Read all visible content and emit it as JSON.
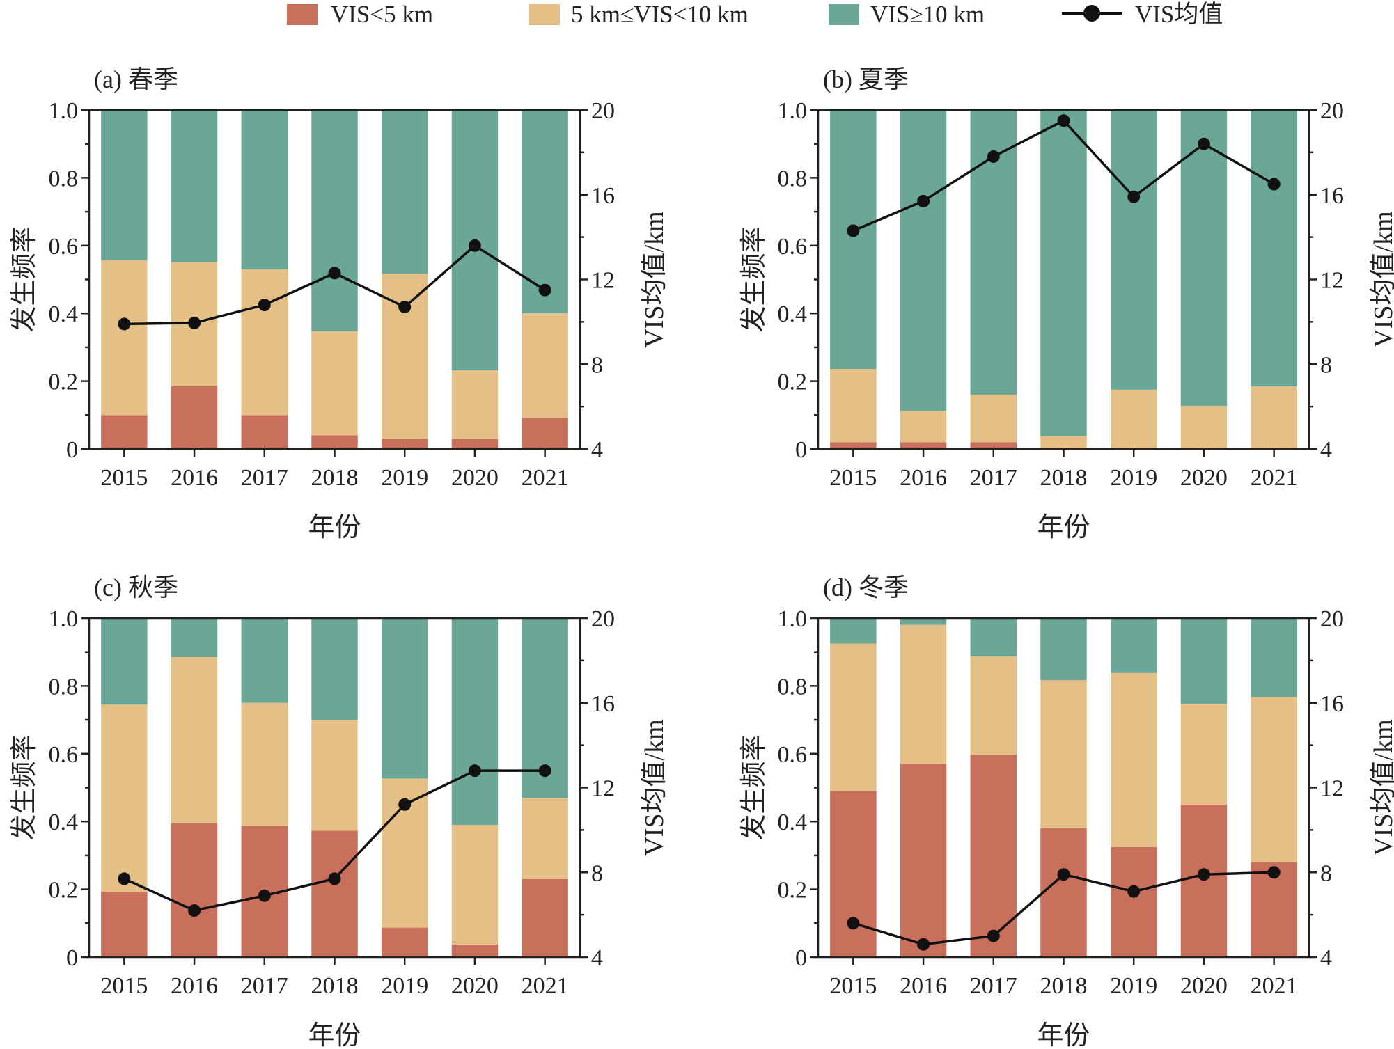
{
  "legend": {
    "items": [
      {
        "label": "VIS<5 km",
        "color": "#c9705c",
        "kind": "bar"
      },
      {
        "label": "5 km≤VIS<10 km",
        "color": "#e4c087",
        "kind": "bar"
      },
      {
        "label": "VIS≥10 km",
        "color": "#6ba797",
        "kind": "bar"
      },
      {
        "label": "VIS均值",
        "color": "#111111",
        "kind": "line"
      }
    ]
  },
  "chart_data": [
    {
      "type": "bar",
      "title": "(a) 春季",
      "categories": [
        "2015",
        "2016",
        "2017",
        "2018",
        "2019",
        "2020",
        "2021"
      ],
      "xlabel": "年份",
      "ylabel": "发生频率",
      "y2label": "VIS均值/km",
      "ylim": [
        0,
        1.0
      ],
      "yticks": [
        "0",
        "0.2",
        "0.4",
        "0.6",
        "0.8",
        "1.0"
      ],
      "y2lim": [
        4,
        20
      ],
      "y2ticks": [
        "4",
        "8",
        "12",
        "16",
        "20"
      ],
      "stacked": true,
      "series": [
        {
          "name": "VIS<5 km",
          "values": [
            0.1,
            0.185,
            0.1,
            0.04,
            0.03,
            0.03,
            0.093
          ]
        },
        {
          "name": "5 km≤VIS<10 km",
          "values": [
            0.457,
            0.367,
            0.43,
            0.307,
            0.487,
            0.202,
            0.307
          ]
        },
        {
          "name": "VIS≥10 km",
          "values": [
            0.443,
            0.448,
            0.47,
            0.653,
            0.483,
            0.768,
            0.6
          ]
        }
      ],
      "line": {
        "name": "VIS均值",
        "values": [
          9.9,
          9.95,
          10.8,
          12.3,
          10.7,
          13.6,
          11.5
        ]
      }
    },
    {
      "type": "bar",
      "title": "(b) 夏季",
      "categories": [
        "2015",
        "2016",
        "2017",
        "2018",
        "2019",
        "2020",
        "2021"
      ],
      "xlabel": "年份",
      "ylabel": "发生频率",
      "y2label": "VIS均值/km",
      "ylim": [
        0,
        1.0
      ],
      "yticks": [
        "0",
        "0.2",
        "0.4",
        "0.6",
        "0.8",
        "1.0"
      ],
      "y2lim": [
        4,
        20
      ],
      "y2ticks": [
        "4",
        "8",
        "12",
        "16",
        "20"
      ],
      "stacked": true,
      "series": [
        {
          "name": "VIS<5 km",
          "values": [
            0.02,
            0.02,
            0.02,
            0.0,
            0.0,
            0.0,
            0.0
          ]
        },
        {
          "name": "5 km≤VIS<10 km",
          "values": [
            0.216,
            0.092,
            0.14,
            0.038,
            0.175,
            0.127,
            0.185
          ]
        },
        {
          "name": "VIS≥10 km",
          "values": [
            0.764,
            0.888,
            0.84,
            0.962,
            0.825,
            0.873,
            0.815
          ]
        }
      ],
      "line": {
        "name": "VIS均值",
        "values": [
          14.3,
          15.7,
          17.8,
          19.5,
          15.9,
          18.4,
          16.5
        ]
      }
    },
    {
      "type": "bar",
      "title": "(c) 秋季",
      "categories": [
        "2015",
        "2016",
        "2017",
        "2018",
        "2019",
        "2020",
        "2021"
      ],
      "xlabel": "年份",
      "ylabel": "发生频率",
      "y2label": "VIS均值/km",
      "ylim": [
        0,
        1.0
      ],
      "yticks": [
        "0",
        "0.2",
        "0.4",
        "0.6",
        "0.8",
        "1.0"
      ],
      "y2lim": [
        4,
        20
      ],
      "y2ticks": [
        "4",
        "8",
        "12",
        "16",
        "20"
      ],
      "stacked": true,
      "series": [
        {
          "name": "VIS<5 km",
          "values": [
            0.193,
            0.395,
            0.387,
            0.373,
            0.087,
            0.037,
            0.23
          ]
        },
        {
          "name": "5 km≤VIS<10 km",
          "values": [
            0.552,
            0.49,
            0.363,
            0.327,
            0.44,
            0.353,
            0.24
          ]
        },
        {
          "name": "VIS≥10 km",
          "values": [
            0.255,
            0.115,
            0.25,
            0.3,
            0.473,
            0.61,
            0.53
          ]
        }
      ],
      "line": {
        "name": "VIS均值",
        "values": [
          7.7,
          6.2,
          6.9,
          7.7,
          11.2,
          12.8,
          12.8
        ]
      }
    },
    {
      "type": "bar",
      "title": "(d) 冬季",
      "categories": [
        "2015",
        "2016",
        "2017",
        "2018",
        "2019",
        "2020",
        "2021"
      ],
      "xlabel": "年份",
      "ylabel": "发生频率",
      "y2label": "VIS均值/km",
      "ylim": [
        0,
        1.0
      ],
      "yticks": [
        "0",
        "0.2",
        "0.4",
        "0.6",
        "0.8",
        "1.0"
      ],
      "y2lim": [
        4,
        20
      ],
      "y2ticks": [
        "4",
        "8",
        "12",
        "16",
        "20"
      ],
      "stacked": true,
      "series": [
        {
          "name": "VIS<5 km",
          "values": [
            0.49,
            0.57,
            0.597,
            0.38,
            0.325,
            0.45,
            0.28
          ]
        },
        {
          "name": "5 km≤VIS<10 km",
          "values": [
            0.435,
            0.41,
            0.29,
            0.437,
            0.513,
            0.297,
            0.487
          ]
        },
        {
          "name": "VIS≥10 km",
          "values": [
            0.075,
            0.02,
            0.113,
            0.183,
            0.162,
            0.253,
            0.233
          ]
        }
      ],
      "line": {
        "name": "VIS均值",
        "values": [
          5.6,
          4.6,
          5.0,
          7.9,
          7.1,
          7.9,
          8.0
        ]
      }
    }
  ]
}
